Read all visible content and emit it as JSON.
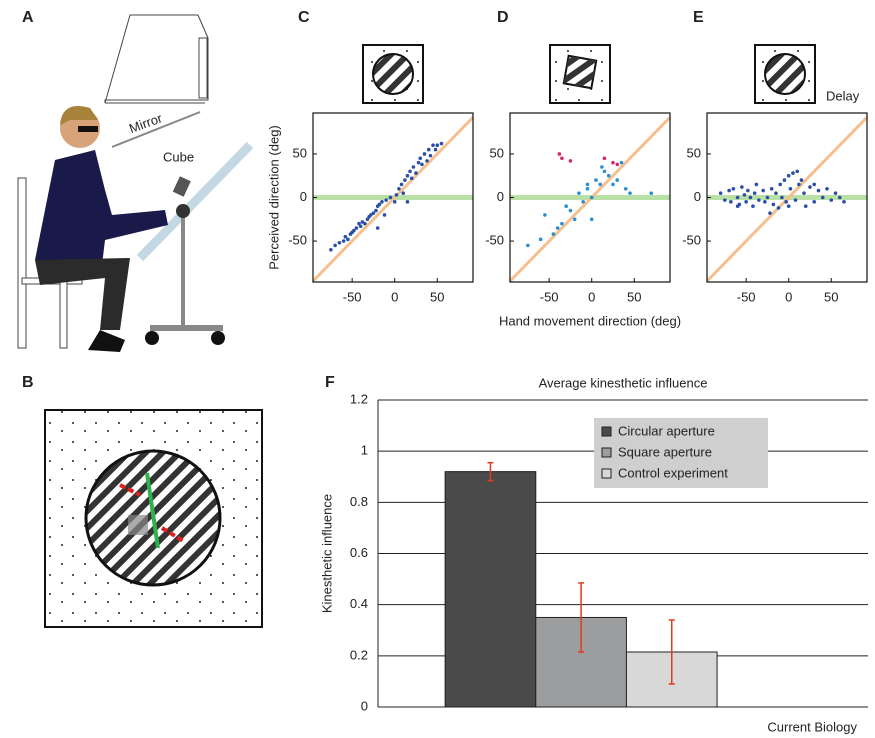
{
  "figure": {
    "panel_letters": [
      "A",
      "B",
      "C",
      "D",
      "E",
      "F"
    ],
    "mirror": "Mirror",
    "cube": "Cube",
    "delay": "Delay",
    "credit": "Current Biology"
  },
  "chart_data": [
    {
      "type": "scatter",
      "ylabel": "Perceived direction (deg)",
      "xlim": [
        -96,
        92
      ],
      "ylim": [
        -97,
        97
      ],
      "xticks": [
        -50,
        0,
        50
      ],
      "yticks": [
        -50,
        0,
        50
      ],
      "diagonal_color": "#f6c08e",
      "zero_line_color": "#b9e0a5",
      "series": [
        {
          "color": "#2a4fa8",
          "x": [
            -75,
            -70,
            -65,
            -60,
            -58,
            -55,
            -52,
            -50,
            -48,
            -45,
            -42,
            -40,
            -38,
            -35,
            -32,
            -30,
            -28,
            -25,
            -22,
            -20,
            -18,
            -15,
            -12,
            -10,
            -5,
            0,
            2,
            5,
            8,
            10,
            12,
            15,
            15,
            18,
            20,
            22,
            25,
            28,
            30,
            32,
            35,
            38,
            40,
            42,
            45,
            48,
            50,
            55,
            -20
          ],
          "y": [
            -60,
            -55,
            -52,
            -50,
            -45,
            -48,
            -42,
            -40,
            -38,
            -35,
            -30,
            -33,
            -28,
            -30,
            -25,
            -22,
            -20,
            -18,
            -15,
            -10,
            -8,
            -5,
            -20,
            -3,
            0,
            -5,
            3,
            10,
            15,
            5,
            20,
            25,
            -5,
            30,
            22,
            35,
            28,
            40,
            45,
            38,
            50,
            42,
            55,
            48,
            60,
            55,
            60,
            62,
            -35
          ]
        }
      ]
    },
    {
      "type": "scatter",
      "xlabel": "Hand movement direction (deg)",
      "xlim": [
        -96,
        92
      ],
      "ylim": [
        -97,
        97
      ],
      "xticks": [
        -50,
        0,
        50
      ],
      "yticks": [
        -50,
        0,
        50
      ],
      "diagonal_color": "#f6c08e",
      "zero_line_color": "#b9e0a5",
      "series": [
        {
          "color": "#2a8fd0",
          "x": [
            -75,
            -60,
            -45,
            -40,
            -35,
            -30,
            -25,
            -20,
            -15,
            -10,
            -5,
            0,
            5,
            10,
            12,
            15,
            20,
            25,
            30,
            35,
            40,
            45,
            -55,
            70,
            0,
            -5
          ],
          "y": [
            -55,
            -48,
            -42,
            -35,
            -30,
            -10,
            -15,
            -25,
            5,
            -5,
            10,
            0,
            20,
            15,
            35,
            30,
            25,
            15,
            20,
            40,
            10,
            5,
            -20,
            5,
            -25,
            15
          ]
        },
        {
          "color": "#d6246e",
          "x": [
            -38,
            -35,
            -25,
            15,
            25,
            30
          ],
          "y": [
            50,
            45,
            42,
            45,
            40,
            38
          ]
        }
      ]
    },
    {
      "type": "scatter",
      "xlim": [
        -96,
        92
      ],
      "ylim": [
        -97,
        97
      ],
      "xticks": [
        -50,
        0,
        50
      ],
      "yticks": [
        -50,
        0,
        50
      ],
      "diagonal_color": "#f6c08e",
      "zero_line_color": "#b9e0a5",
      "series": [
        {
          "color": "#2a4fa8",
          "x": [
            -80,
            -75,
            -70,
            -68,
            -65,
            -60,
            -58,
            -55,
            -52,
            -50,
            -48,
            -45,
            -42,
            -40,
            -38,
            -35,
            -30,
            -28,
            -25,
            -22,
            -20,
            -18,
            -15,
            -12,
            -10,
            -8,
            -5,
            -3,
            0,
            2,
            5,
            8,
            10,
            12,
            15,
            18,
            20,
            25,
            30,
            35,
            40,
            45,
            50,
            55,
            60,
            65,
            0,
            -60,
            30
          ],
          "y": [
            5,
            -3,
            8,
            -5,
            10,
            0,
            -8,
            12,
            3,
            -5,
            8,
            0,
            -10,
            5,
            15,
            -3,
            8,
            -5,
            0,
            -18,
            10,
            -8,
            5,
            -12,
            15,
            0,
            20,
            -5,
            25,
            10,
            28,
            -3,
            30,
            15,
            20,
            5,
            -10,
            12,
            -5,
            8,
            0,
            10,
            -3,
            5,
            0,
            -5,
            -10,
            -10,
            15
          ]
        }
      ]
    },
    {
      "type": "bar",
      "title": "Average kinesthetic influence",
      "ylabel": "Kinesthetic influence",
      "categories": [
        null
      ],
      "ylim": [
        0,
        1.2
      ],
      "yticks": [
        0,
        0.2,
        0.4,
        0.6,
        0.8,
        1,
        1.2
      ],
      "grid": true,
      "legend": "top-right",
      "error_color": "#e03a1e",
      "series": [
        {
          "name": "Circular aperture",
          "color": "#4a4a4a",
          "values": [
            0.92
          ],
          "errors": [
            0.035
          ]
        },
        {
          "name": "Square aperture",
          "color": "#9b9d9f",
          "values": [
            0.35
          ],
          "errors": [
            0.135
          ]
        },
        {
          "name": "Control experiment",
          "color": "#d8d8d8",
          "values": [
            0.215
          ],
          "errors": [
            0.125
          ]
        }
      ]
    }
  ]
}
